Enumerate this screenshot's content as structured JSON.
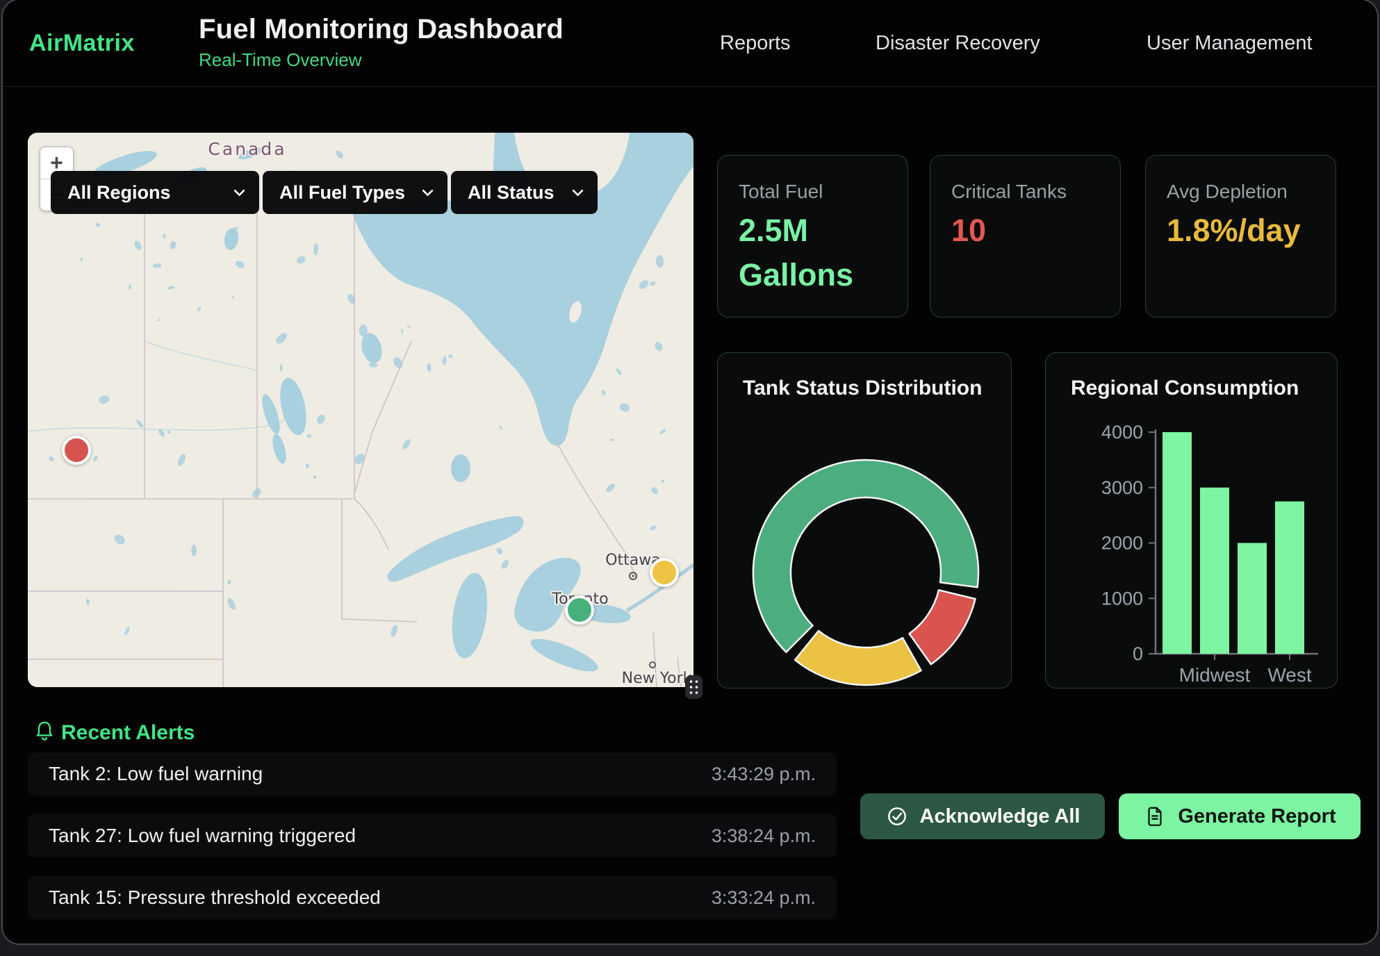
{
  "header": {
    "logo": "AirMatrix",
    "title": "Fuel Monitoring Dashboard",
    "subtitle": "Real-Time Overview",
    "nav": [
      {
        "label": "Reports"
      },
      {
        "label": "Disaster Recovery"
      },
      {
        "label": "User Management"
      }
    ]
  },
  "map": {
    "country_label": "Canada",
    "zoom_in_label": "+",
    "zoom_out_label": "−",
    "filters": [
      {
        "label": "All Regions"
      },
      {
        "label": "All Fuel Types"
      },
      {
        "label": "All Status"
      }
    ],
    "cities": [
      {
        "name": "Ottawa"
      },
      {
        "name": "Toronto"
      },
      {
        "name": "New York"
      }
    ],
    "markers": [
      {
        "status": "critical",
        "color": "#d65350"
      },
      {
        "status": "warning",
        "color": "#eec343"
      },
      {
        "status": "normal",
        "color": "#46b179"
      }
    ]
  },
  "stats": [
    {
      "label": "Total Fuel",
      "value": "2.5M Gallons",
      "color": "#79f2a5"
    },
    {
      "label": "Critical Tanks",
      "value": "10",
      "color": "#e25752"
    },
    {
      "label": "Avg Depletion",
      "value": "1.8%/day",
      "color": "#e9ba3c"
    }
  ],
  "chart_data": [
    {
      "type": "donut",
      "title": "Tank Status Distribution",
      "legend": "none",
      "start_angle_deg": 225,
      "segment_gap_deg": 6,
      "segments": [
        {
          "label": "normal",
          "color": "#4cae7e",
          "percent": 68
        },
        {
          "label": "critical",
          "color": "#d9534f",
          "percent": 12
        },
        {
          "label": "warning",
          "color": "#ecc244",
          "percent": 20
        }
      ]
    },
    {
      "type": "bar",
      "title": "Regional Consumption",
      "categories_visible": [
        "",
        "Midwest",
        "",
        "West"
      ],
      "values": [
        4000,
        3000,
        2000,
        2750
      ],
      "y_ticks": [
        0,
        1000,
        2000,
        3000,
        4000
      ],
      "ylim": [
        0,
        4000
      ],
      "bar_color": "#7df5a1",
      "axis_color": "#71717a",
      "tick_label_color": "#9ca3af"
    }
  ],
  "alerts": {
    "title": "Recent Alerts",
    "items": [
      {
        "message": "Tank 2: Low fuel warning",
        "time": "3:43:29 p.m."
      },
      {
        "message": "Tank 27: Low fuel warning triggered",
        "time": "3:38:24 p.m."
      },
      {
        "message": "Tank 15: Pressure threshold exceeded",
        "time": "3:33:24 p.m."
      }
    ]
  },
  "actions": {
    "acknowledge_label": "Acknowledge All",
    "generate_label": "Generate Report"
  }
}
